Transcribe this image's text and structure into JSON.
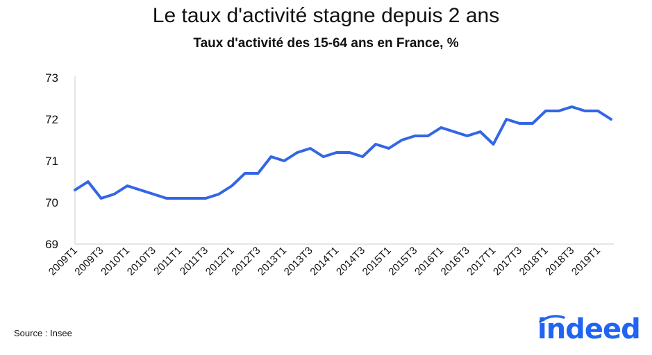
{
  "title": "Le taux d'activité stagne depuis 2 ans",
  "subtitle": "Taux d'activité des 15-64 ans en France, %",
  "source": "Source : Insee",
  "logo": {
    "name": "indeed-logo",
    "text": "indeed",
    "color": "#2164f3"
  },
  "chart_data": {
    "type": "line",
    "title": "Taux d'activité des 15-64 ans en France, %",
    "xlabel": "",
    "ylabel": "",
    "ylim": [
      69,
      73
    ],
    "yticks": [
      69,
      70,
      71,
      72,
      73
    ],
    "grid": false,
    "line_color": "#3366e6",
    "x": [
      "2009T1",
      "2009T2",
      "2009T3",
      "2009T4",
      "2010T1",
      "2010T2",
      "2010T3",
      "2010T4",
      "2011T1",
      "2011T2",
      "2011T3",
      "2011T4",
      "2012T1",
      "2012T2",
      "2012T3",
      "2012T4",
      "2013T1",
      "2013T2",
      "2013T3",
      "2013T4",
      "2014T1",
      "2014T2",
      "2014T3",
      "2014T4",
      "2015T1",
      "2015T2",
      "2015T3",
      "2015T4",
      "2016T1",
      "2016T2",
      "2016T3",
      "2016T4",
      "2017T1",
      "2017T2",
      "2017T3",
      "2017T4",
      "2018T1",
      "2018T2",
      "2018T3",
      "2018T4",
      "2019T1",
      "2019T2"
    ],
    "xtick_labels": [
      "2009T1",
      "2009T3",
      "2010T1",
      "2010T3",
      "2011T1",
      "2011T3",
      "2012T1",
      "2012T3",
      "2013T1",
      "2013T3",
      "2014T1",
      "2014T3",
      "2015T1",
      "2015T3",
      "2016T1",
      "2016T3",
      "2017T1",
      "2017T3",
      "2018T1",
      "2018T3",
      "2019T1"
    ],
    "series": [
      {
        "values": [
          70.3,
          70.5,
          70.1,
          70.2,
          70.4,
          70.3,
          70.2,
          70.1,
          70.1,
          70.1,
          70.1,
          70.2,
          70.4,
          70.7,
          70.7,
          71.1,
          71.0,
          71.2,
          71.3,
          71.1,
          71.2,
          71.2,
          71.1,
          71.4,
          71.3,
          71.5,
          71.6,
          71.6,
          71.8,
          71.7,
          71.6,
          71.7,
          71.4,
          72.0,
          71.9,
          71.9,
          72.2,
          72.2,
          72.3,
          72.2,
          72.2,
          72.0
        ]
      }
    ]
  }
}
